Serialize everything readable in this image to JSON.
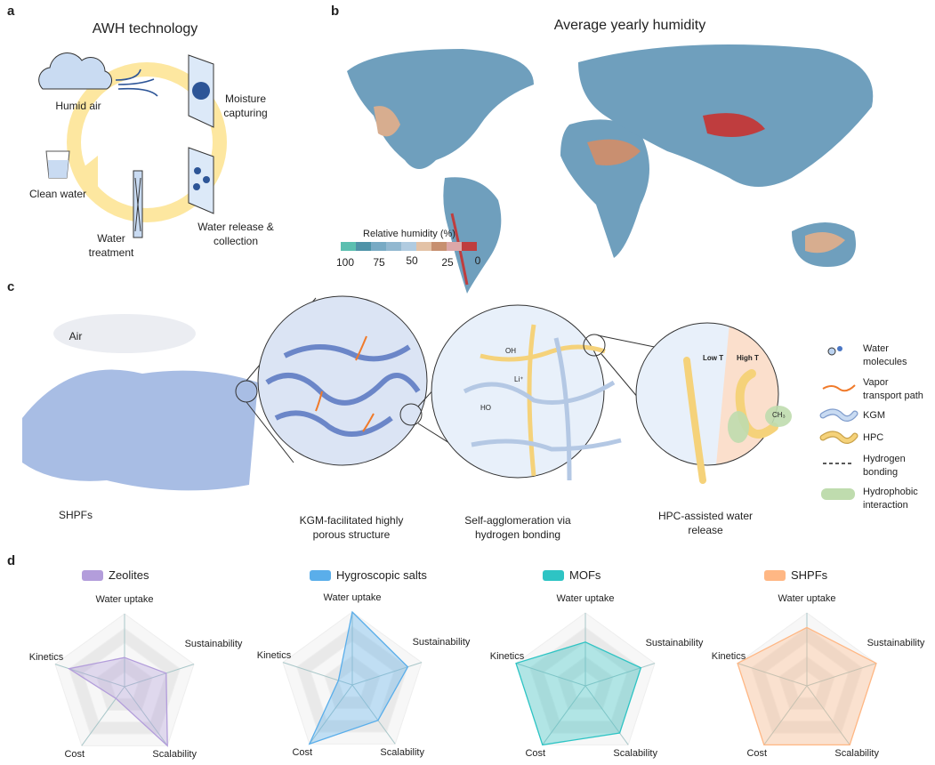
{
  "panels": {
    "a": {
      "label": "a",
      "title": "AWH technology",
      "steps": {
        "humid_air": "Humid air",
        "moisture_1": "Moisture",
        "moisture_2": "capturing",
        "release_1": "Water release &",
        "release_2": "collection",
        "treatment_1": "Water",
        "treatment_2": "treatment",
        "clean_water": "Clean water"
      },
      "colors": {
        "cycle": "#fde7a0",
        "cloud": "#c9dbf2",
        "accent": "#2d5597"
      }
    },
    "b": {
      "label": "b",
      "title": "Average yearly humidity",
      "legend": {
        "title": "Relative humidity (%)",
        "ticks": [
          "100",
          "75",
          "50",
          "25",
          "0"
        ],
        "colors": [
          "#5bbfb0",
          "#4f93a8",
          "#78aac4",
          "#92b8d0",
          "#b0cbe0",
          "#e3c2a6",
          "#c79070",
          "#dca7a8",
          "#bf3d3e"
        ]
      }
    },
    "c": {
      "label": "c",
      "air": "Air",
      "shpfs": "SHPFs",
      "captions": {
        "porous_1": "KGM-facilitated highly",
        "porous_2": "porous structure",
        "agglom_1": "Self-agglomeration via",
        "agglom_2": "hydrogen bonding",
        "release_1": "HPC-assisted water",
        "release_2": "release"
      },
      "detail": {
        "low_t": "Low T",
        "high_t": "High T",
        "oh": "OH",
        "ho": "HO",
        "li": "Li⁺",
        "ch3": "CH₃"
      },
      "legend": [
        {
          "icon": "water-molecule-icon",
          "line1": "Water",
          "line2": "molecules"
        },
        {
          "icon": "vapor-path-icon",
          "line1": "Vapor",
          "line2": "transport path"
        },
        {
          "icon": "kgm-strand-icon",
          "line1": "KGM",
          "line2": ""
        },
        {
          "icon": "hpc-strand-icon",
          "line1": "HPC",
          "line2": ""
        },
        {
          "icon": "hydrogen-bond-icon",
          "line1": "Hydrogen",
          "line2": "bonding"
        },
        {
          "icon": "hydrophobic-icon",
          "line1": "Hydrophobic",
          "line2": "interaction"
        }
      ]
    },
    "d": {
      "label": "d"
    }
  },
  "chart_data": [
    {
      "type": "radar",
      "name": "Zeolites",
      "color": "#b39ddb",
      "axes": [
        "Water uptake",
        "Sustainability",
        "Scalability",
        "Cost",
        "Kinetics"
      ],
      "values": [
        2,
        3,
        5,
        1,
        4
      ],
      "rmax": 5
    },
    {
      "type": "radar",
      "name": "Hygroscopic salts",
      "color": "#5aaeea",
      "axes": [
        "Water uptake",
        "Sustainability",
        "Scalability",
        "Cost",
        "Kinetics"
      ],
      "values": [
        5,
        4,
        3,
        5,
        1
      ],
      "rmax": 5
    },
    {
      "type": "radar",
      "name": "MOFs",
      "color": "#2ec4c4",
      "axes": [
        "Water uptake",
        "Sustainability",
        "Scalability",
        "Cost",
        "Kinetics"
      ],
      "values": [
        3,
        4,
        4,
        5,
        5
      ],
      "rmax": 5
    },
    {
      "type": "radar",
      "name": "SHPFs",
      "color": "#ffb784",
      "axes": [
        "Water uptake",
        "Sustainability",
        "Scalability",
        "Cost",
        "Kinetics"
      ],
      "values": [
        4,
        5,
        5,
        5,
        5
      ],
      "rmax": 5
    }
  ]
}
